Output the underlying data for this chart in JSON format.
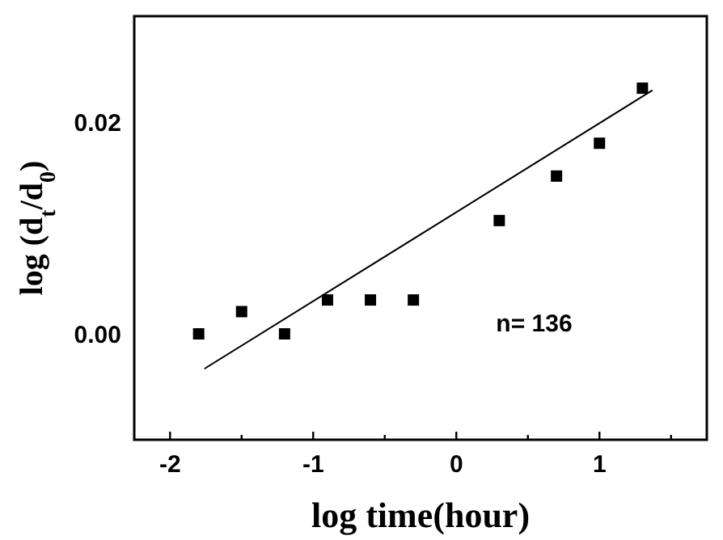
{
  "chart_data": {
    "type": "scatter",
    "xlabel": "log time(hour)",
    "ylabel": "log (d$_{t}$/d$_{0}$)",
    "xlim": [
      -2.25,
      1.75
    ],
    "ylim": [
      -0.01,
      0.03
    ],
    "xticks": [
      -2,
      {
        "value": -1.5,
        "label": null
      },
      -1,
      {
        "value": -0.5,
        "label": null
      },
      0,
      {
        "value": 0.5,
        "label": null
      },
      1,
      {
        "value": 1.5,
        "label": null
      }
    ],
    "yticks": [
      {
        "value": 0,
        "label": "0.00"
      },
      0.02
    ],
    "marker": "square",
    "grid": false,
    "annotations": [
      "n= 136"
    ],
    "series": [
      {
        "color": "#000000",
        "x": [
          -1.8,
          -1.5,
          -1.2,
          -0.9,
          -0.6,
          -0.3,
          0.3,
          0.7,
          1.0,
          1.3
        ],
        "values": [
          0,
          0.0021,
          0,
          0.0032,
          0.0032,
          0.0032,
          0.0107,
          0.0149,
          0.018,
          0.0232
        ]
      },
      {
        "type": "line",
        "color": "#000000",
        "marker": "none",
        "x": [
          -1.76,
          1.37
        ],
        "values": [
          -0.0033,
          0.023
        ]
      }
    ]
  }
}
